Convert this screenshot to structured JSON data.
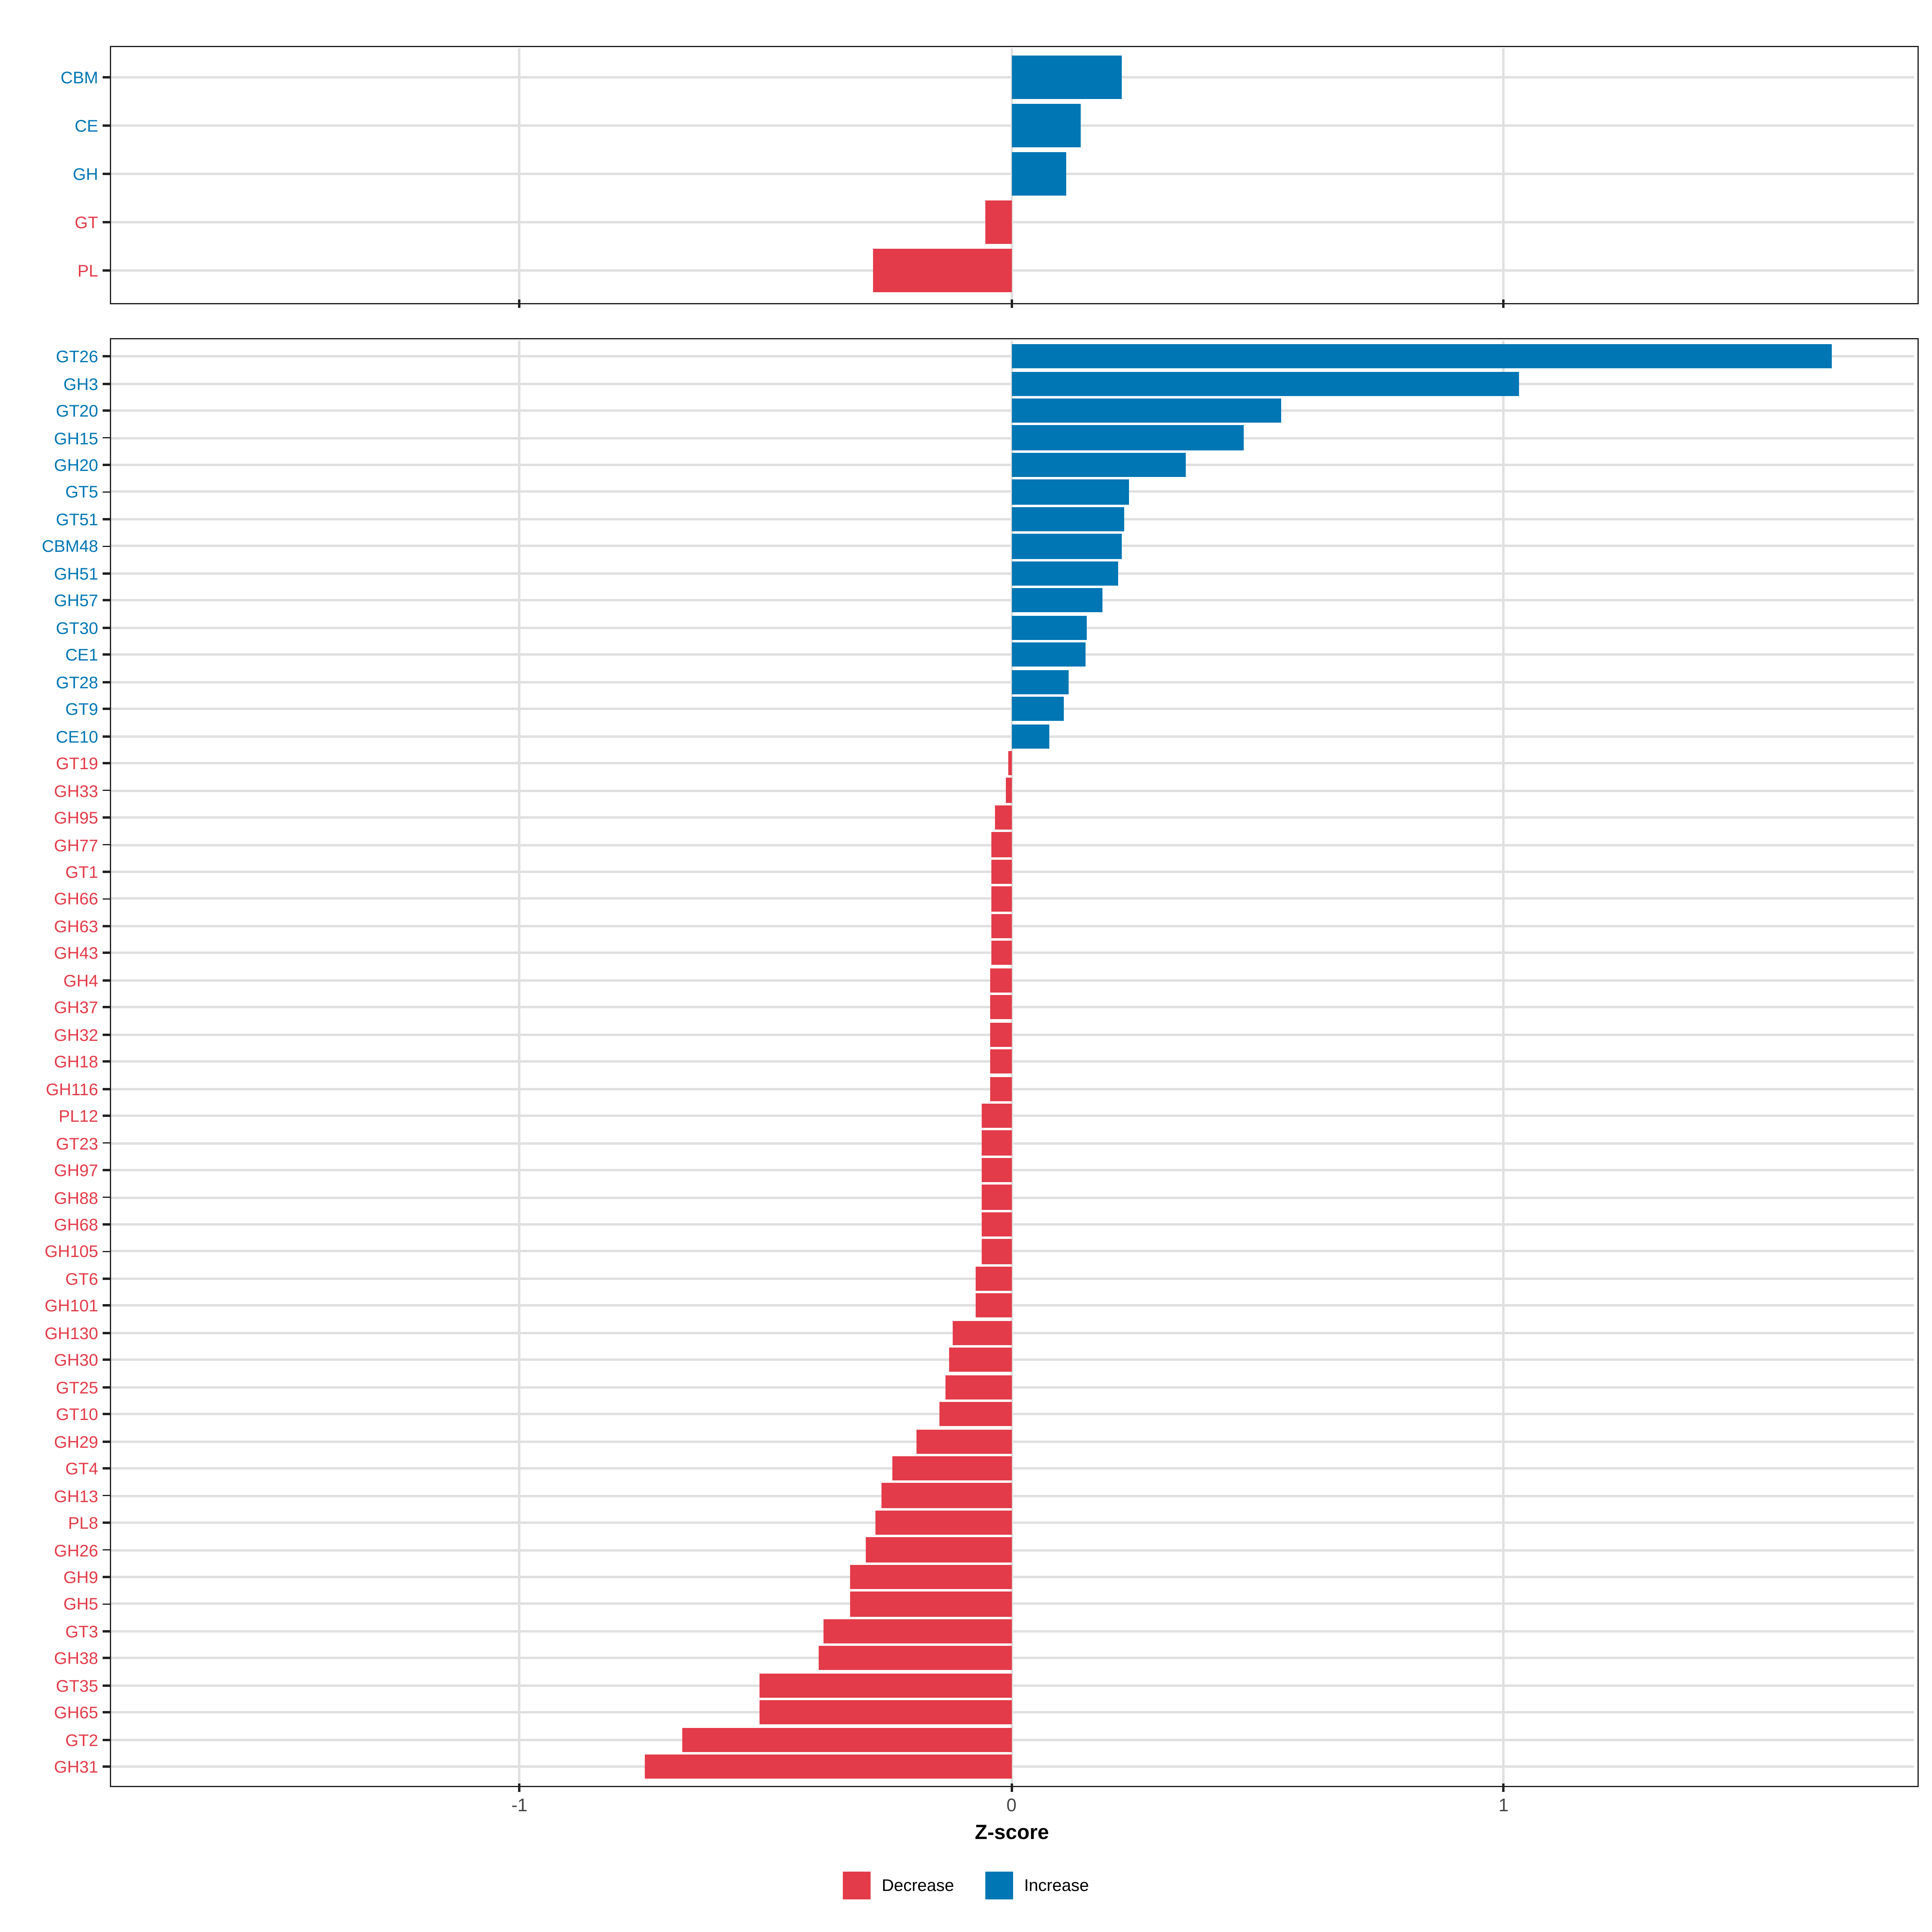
{
  "axis": {
    "label": "Z-score",
    "tick_labels": [
      "-1",
      "0",
      "1"
    ]
  },
  "legend": {
    "items": [
      {
        "label": "Decrease",
        "color": "#e33b49"
      },
      {
        "label": "Increase",
        "color": "#0076b4"
      }
    ]
  },
  "colors": {
    "increase": "#0076b4",
    "decrease": "#e33b49",
    "grid": "#e0e0e0",
    "panel_border": "#1d1d1d",
    "tick": "#222222",
    "tick_label": "#454545"
  },
  "chart_data": [
    {
      "type": "bar",
      "orientation": "horizontal",
      "panel": "cazyme-classes",
      "title": "",
      "xlabel": "Z-score",
      "ylabel": "",
      "xlim": [
        -1.83,
        1.835
      ],
      "xticks": [
        -1,
        0,
        1
      ],
      "grid": true,
      "legend_position": "bottom",
      "categories": [
        "CBM",
        "CE",
        "GH",
        "GT",
        "PL"
      ],
      "values": [
        0.224,
        0.14,
        0.112,
        -0.053,
        -0.281
      ],
      "directions": [
        "Increase",
        "Increase",
        "Increase",
        "Decrease",
        "Decrease"
      ]
    },
    {
      "type": "bar",
      "orientation": "horizontal",
      "panel": "cazyme-families",
      "title": "",
      "xlabel": "Z-score",
      "ylabel": "",
      "xlim": [
        -1.83,
        1.835
      ],
      "xticks": [
        -1,
        0,
        1
      ],
      "grid": true,
      "legend_position": "bottom",
      "categories": [
        "GT26",
        "GH3",
        "GT20",
        "GH15",
        "GH20",
        "GT5",
        "GT51",
        "CBM48",
        "GH51",
        "GH57",
        "GT30",
        "CE1",
        "GT28",
        "GT9",
        "CE10",
        "GT19",
        "GH33",
        "GH95",
        "GH77",
        "GT1",
        "GH66",
        "GH63",
        "GH43",
        "GH4",
        "GH37",
        "GH32",
        "GH18",
        "GH116",
        "PL12",
        "GT23",
        "GH97",
        "GH88",
        "GH68",
        "GH105",
        "GT6",
        "GH101",
        "GH130",
        "GH30",
        "GT25",
        "GT10",
        "GH29",
        "GT4",
        "GH13",
        "PL8",
        "GH26",
        "GH9",
        "GH5",
        "GT3",
        "GH38",
        "GT35",
        "GH65",
        "GT2",
        "GH31"
      ],
      "values": [
        1.667,
        1.032,
        0.549,
        0.472,
        0.355,
        0.24,
        0.229,
        0.225,
        0.217,
        0.184,
        0.154,
        0.15,
        0.115,
        0.107,
        0.078,
        -0.007,
        -0.011,
        -0.033,
        -0.042,
        -0.042,
        -0.042,
        -0.042,
        -0.042,
        -0.043,
        -0.043,
        -0.043,
        -0.043,
        -0.043,
        -0.06,
        -0.06,
        -0.06,
        -0.06,
        -0.06,
        -0.06,
        -0.072,
        -0.072,
        -0.119,
        -0.128,
        -0.134,
        -0.146,
        -0.192,
        -0.241,
        -0.264,
        -0.276,
        -0.296,
        -0.328,
        -0.328,
        -0.382,
        -0.391,
        -0.511,
        -0.511,
        -0.668,
        -0.745
      ],
      "directions": [
        "Increase",
        "Increase",
        "Increase",
        "Increase",
        "Increase",
        "Increase",
        "Increase",
        "Increase",
        "Increase",
        "Increase",
        "Increase",
        "Increase",
        "Increase",
        "Increase",
        "Increase",
        "Decrease",
        "Decrease",
        "Decrease",
        "Decrease",
        "Decrease",
        "Decrease",
        "Decrease",
        "Decrease",
        "Decrease",
        "Decrease",
        "Decrease",
        "Decrease",
        "Decrease",
        "Decrease",
        "Decrease",
        "Decrease",
        "Decrease",
        "Decrease",
        "Decrease",
        "Decrease",
        "Decrease",
        "Decrease",
        "Decrease",
        "Decrease",
        "Decrease",
        "Decrease",
        "Decrease",
        "Decrease",
        "Decrease",
        "Decrease",
        "Decrease",
        "Decrease",
        "Decrease",
        "Decrease",
        "Decrease",
        "Decrease",
        "Decrease",
        "Decrease"
      ]
    }
  ]
}
